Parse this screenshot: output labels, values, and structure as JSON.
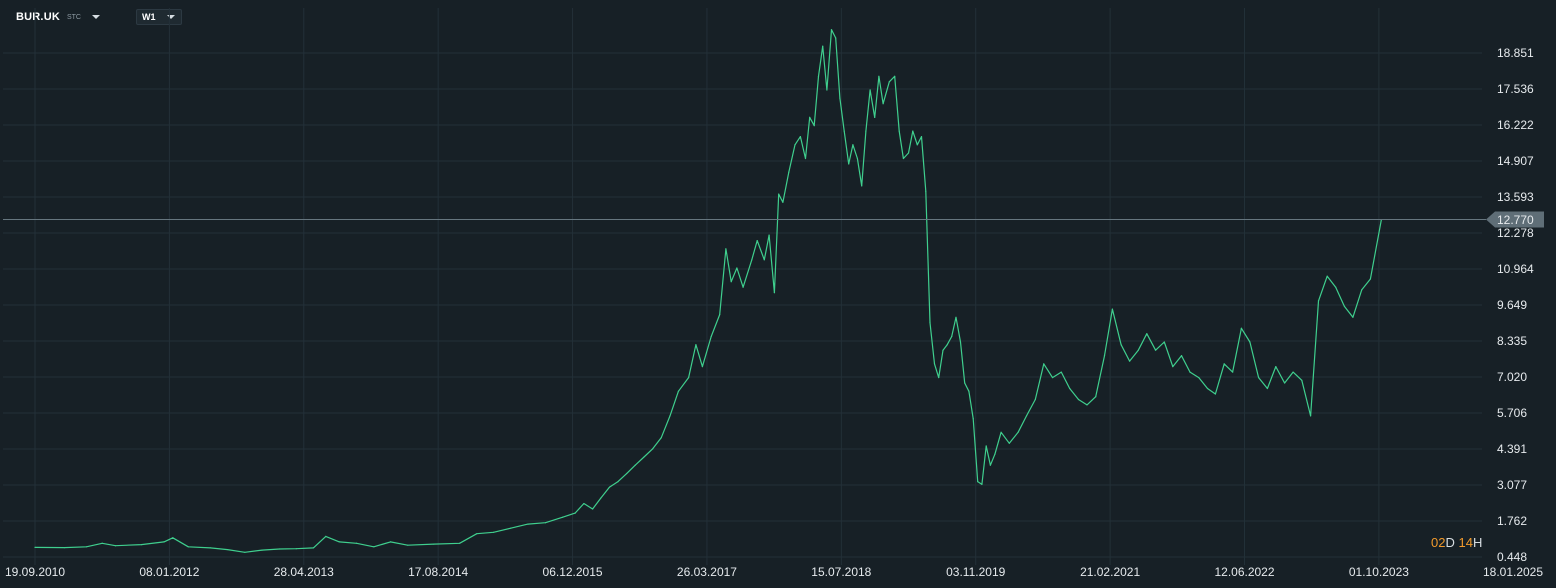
{
  "header": {
    "symbol": "BUR.UK",
    "symbol_sub": "STC",
    "timeframe": "W1"
  },
  "timer": {
    "days": "02",
    "days_unit": "D",
    "hours": "14",
    "hours_unit": "H"
  },
  "colors": {
    "background": "#172026",
    "line": "#3fcf8e",
    "grid": "#233038",
    "price_line": "#66767f",
    "price_tag": "#5f6e77"
  },
  "chart_data": {
    "type": "line",
    "title": "",
    "xlabel": "",
    "ylabel": "",
    "grid": true,
    "current_price": "12.770",
    "x_ticks": [
      "19.09.2010",
      "08.01.2012",
      "28.04.2013",
      "17.08.2014",
      "06.12.2015",
      "26.03.2017",
      "15.07.2018",
      "03.11.2019",
      "21.02.2021",
      "12.06.2022",
      "01.10.2023",
      "18.01.2025"
    ],
    "y_ticks": [
      "18.851",
      "17.536",
      "16.222",
      "14.907",
      "13.593",
      "12.278",
      "10.964",
      "9.649",
      "8.335",
      "7.020",
      "5.706",
      "4.391",
      "3.077",
      "1.762",
      "0.448"
    ],
    "ylim": [
      0.448,
      20.0
    ],
    "series": [
      {
        "points": [
          [
            "2010-09-19",
            0.8
          ],
          [
            "2011-01-01",
            0.79
          ],
          [
            "2011-03-20",
            0.82
          ],
          [
            "2011-05-15",
            0.95
          ],
          [
            "2011-07-01",
            0.86
          ],
          [
            "2011-10-01",
            0.9
          ],
          [
            "2011-12-20",
            1.0
          ],
          [
            "2012-01-20",
            1.15
          ],
          [
            "2012-03-15",
            0.82
          ],
          [
            "2012-06-01",
            0.78
          ],
          [
            "2012-08-01",
            0.72
          ],
          [
            "2012-10-01",
            0.62
          ],
          [
            "2012-12-01",
            0.7
          ],
          [
            "2013-02-01",
            0.74
          ],
          [
            "2013-04-01",
            0.75
          ],
          [
            "2013-06-01",
            0.78
          ],
          [
            "2013-07-15",
            1.2
          ],
          [
            "2013-09-01",
            1.0
          ],
          [
            "2013-11-01",
            0.95
          ],
          [
            "2014-01-01",
            0.82
          ],
          [
            "2014-03-01",
            1.0
          ],
          [
            "2014-05-01",
            0.88
          ],
          [
            "2014-08-01",
            0.92
          ],
          [
            "2014-11-01",
            0.95
          ],
          [
            "2015-01-01",
            1.3
          ],
          [
            "2015-03-01",
            1.35
          ],
          [
            "2015-05-01",
            1.5
          ],
          [
            "2015-07-01",
            1.65
          ],
          [
            "2015-09-01",
            1.7
          ],
          [
            "2015-11-01",
            1.9
          ],
          [
            "2015-12-15",
            2.05
          ],
          [
            "2016-01-15",
            2.4
          ],
          [
            "2016-02-15",
            2.2
          ],
          [
            "2016-03-15",
            2.6
          ],
          [
            "2016-04-15",
            3.0
          ],
          [
            "2016-05-15",
            3.2
          ],
          [
            "2016-06-15",
            3.5
          ],
          [
            "2016-07-15",
            3.8
          ],
          [
            "2016-08-15",
            4.1
          ],
          [
            "2016-09-15",
            4.4
          ],
          [
            "2016-10-15",
            4.8
          ],
          [
            "2016-11-15",
            5.6
          ],
          [
            "2016-12-15",
            6.5
          ],
          [
            "2017-01-20",
            7.0
          ],
          [
            "2017-02-15",
            8.2
          ],
          [
            "2017-03-10",
            7.4
          ],
          [
            "2017-04-10",
            8.5
          ],
          [
            "2017-05-10",
            9.3
          ],
          [
            "2017-06-01",
            11.7
          ],
          [
            "2017-06-20",
            10.5
          ],
          [
            "2017-07-10",
            11.0
          ],
          [
            "2017-08-01",
            10.3
          ],
          [
            "2017-09-01",
            11.3
          ],
          [
            "2017-09-20",
            12.0
          ],
          [
            "2017-10-15",
            11.3
          ],
          [
            "2017-11-01",
            12.2
          ],
          [
            "2017-11-20",
            10.1
          ],
          [
            "2017-12-05",
            13.7
          ],
          [
            "2017-12-20",
            13.4
          ],
          [
            "2018-01-10",
            14.5
          ],
          [
            "2018-02-01",
            15.5
          ],
          [
            "2018-02-20",
            15.8
          ],
          [
            "2018-03-10",
            15.0
          ],
          [
            "2018-03-25",
            16.5
          ],
          [
            "2018-04-10",
            16.2
          ],
          [
            "2018-04-25",
            18.0
          ],
          [
            "2018-05-10",
            19.1
          ],
          [
            "2018-05-25",
            17.5
          ],
          [
            "2018-06-10",
            19.7
          ],
          [
            "2018-06-25",
            19.4
          ],
          [
            "2018-07-10",
            17.2
          ],
          [
            "2018-07-25",
            16.0
          ],
          [
            "2018-08-10",
            14.8
          ],
          [
            "2018-08-25",
            15.5
          ],
          [
            "2018-09-10",
            15.0
          ],
          [
            "2018-09-25",
            14.0
          ],
          [
            "2018-10-10",
            16.0
          ],
          [
            "2018-10-25",
            17.5
          ],
          [
            "2018-11-10",
            16.5
          ],
          [
            "2018-11-25",
            18.0
          ],
          [
            "2018-12-10",
            17.0
          ],
          [
            "2019-01-01",
            17.8
          ],
          [
            "2019-01-20",
            18.0
          ],
          [
            "2019-02-05",
            16.0
          ],
          [
            "2019-02-20",
            15.0
          ],
          [
            "2019-03-10",
            15.2
          ],
          [
            "2019-03-25",
            16.0
          ],
          [
            "2019-04-10",
            15.5
          ],
          [
            "2019-04-25",
            15.8
          ],
          [
            "2019-05-10",
            13.8
          ],
          [
            "2019-05-25",
            9.0
          ],
          [
            "2019-06-10",
            7.5
          ],
          [
            "2019-06-25",
            7.0
          ],
          [
            "2019-07-10",
            8.0
          ],
          [
            "2019-07-25",
            8.2
          ],
          [
            "2019-08-10",
            8.5
          ],
          [
            "2019-08-25",
            9.2
          ],
          [
            "2019-09-10",
            8.3
          ],
          [
            "2019-09-25",
            6.8
          ],
          [
            "2019-10-10",
            6.5
          ],
          [
            "2019-10-25",
            5.5
          ],
          [
            "2019-11-10",
            3.2
          ],
          [
            "2019-11-25",
            3.1
          ],
          [
            "2019-12-10",
            4.5
          ],
          [
            "2019-12-25",
            3.8
          ],
          [
            "2020-01-10",
            4.2
          ],
          [
            "2020-02-01",
            5.0
          ],
          [
            "2020-03-01",
            4.6
          ],
          [
            "2020-04-01",
            5.0
          ],
          [
            "2020-05-01",
            5.6
          ],
          [
            "2020-06-01",
            6.2
          ],
          [
            "2020-07-01",
            7.5
          ],
          [
            "2020-08-01",
            7.0
          ],
          [
            "2020-09-01",
            7.2
          ],
          [
            "2020-10-01",
            6.6
          ],
          [
            "2020-11-01",
            6.2
          ],
          [
            "2020-12-01",
            6.0
          ],
          [
            "2021-01-01",
            6.3
          ],
          [
            "2021-02-01",
            7.8
          ],
          [
            "2021-03-01",
            9.5
          ],
          [
            "2021-04-01",
            8.2
          ],
          [
            "2021-05-01",
            7.6
          ],
          [
            "2021-06-01",
            8.0
          ],
          [
            "2021-07-01",
            8.6
          ],
          [
            "2021-08-01",
            8.0
          ],
          [
            "2021-09-01",
            8.3
          ],
          [
            "2021-10-01",
            7.4
          ],
          [
            "2021-11-01",
            7.8
          ],
          [
            "2021-12-01",
            7.2
          ],
          [
            "2022-01-01",
            7.0
          ],
          [
            "2022-02-01",
            6.6
          ],
          [
            "2022-03-01",
            6.4
          ],
          [
            "2022-04-01",
            7.5
          ],
          [
            "2022-05-01",
            7.2
          ],
          [
            "2022-06-01",
            8.8
          ],
          [
            "2022-07-01",
            8.3
          ],
          [
            "2022-08-01",
            7.0
          ],
          [
            "2022-09-01",
            6.6
          ],
          [
            "2022-10-01",
            7.4
          ],
          [
            "2022-11-01",
            6.8
          ],
          [
            "2022-12-01",
            7.2
          ],
          [
            "2023-01-01",
            6.9
          ],
          [
            "2023-02-01",
            5.6
          ],
          [
            "2023-03-01",
            9.8
          ],
          [
            "2023-04-01",
            10.7
          ],
          [
            "2023-05-01",
            10.3
          ],
          [
            "2023-06-01",
            9.6
          ],
          [
            "2023-07-01",
            9.2
          ],
          [
            "2023-08-01",
            10.2
          ],
          [
            "2023-09-01",
            10.6
          ],
          [
            "2023-10-10",
            12.77
          ]
        ]
      }
    ]
  }
}
